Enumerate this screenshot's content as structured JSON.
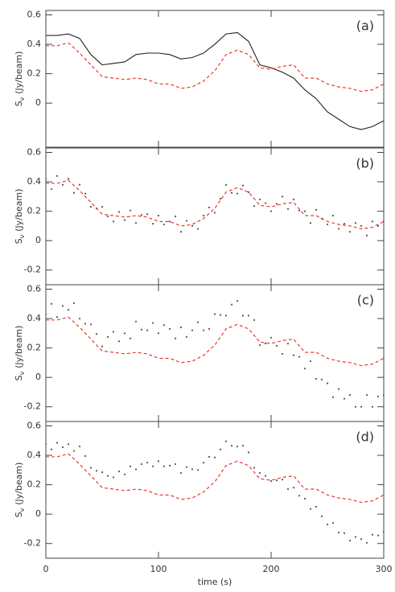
{
  "chart_data": [
    {
      "type": "line",
      "label": "(a)",
      "ylabel": {
        "main": "S",
        "sub": "ν",
        "unit": "(Jy/beam)"
      },
      "xlim": [
        0,
        300
      ],
      "xticks": [
        0,
        100,
        200,
        300
      ],
      "xtick_labels": false,
      "ylim": [
        -0.3,
        0.63
      ],
      "yticks": [
        0,
        0.2,
        0.4,
        0.6
      ],
      "series": [
        {
          "style": "solid",
          "color": "#222222",
          "x": [
            0,
            10,
            20,
            30,
            40,
            50,
            60,
            70,
            80,
            90,
            100,
            110,
            120,
            130,
            140,
            150,
            160,
            170,
            180,
            190,
            200,
            210,
            220,
            230,
            240,
            250,
            260,
            270,
            280,
            290,
            300
          ],
          "values": [
            0.46,
            0.46,
            0.47,
            0.44,
            0.33,
            0.26,
            0.27,
            0.28,
            0.33,
            0.34,
            0.34,
            0.33,
            0.3,
            0.31,
            0.34,
            0.4,
            0.47,
            0.48,
            0.42,
            0.26,
            0.24,
            0.21,
            0.17,
            0.09,
            0.03,
            -0.06,
            -0.11,
            -0.16,
            -0.18,
            -0.16,
            -0.12
          ]
        },
        {
          "style": "dashed",
          "color": "#e8281e",
          "x": [
            0,
            10,
            20,
            30,
            40,
            50,
            60,
            70,
            80,
            90,
            100,
            110,
            120,
            130,
            140,
            150,
            160,
            170,
            180,
            190,
            200,
            210,
            220,
            230,
            240,
            250,
            260,
            270,
            280,
            290,
            300
          ],
          "values": [
            0.39,
            0.39,
            0.41,
            0.34,
            0.26,
            0.18,
            0.17,
            0.16,
            0.17,
            0.16,
            0.13,
            0.13,
            0.1,
            0.11,
            0.15,
            0.22,
            0.33,
            0.36,
            0.33,
            0.24,
            0.23,
            0.25,
            0.26,
            0.17,
            0.17,
            0.13,
            0.11,
            0.1,
            0.08,
            0.09,
            0.13
          ]
        }
      ]
    },
    {
      "type": "line",
      "label": "(b)",
      "ylabel": {
        "main": "S",
        "sub": "ν",
        "unit": "(Jy/beam)"
      },
      "xlim": [
        0,
        300
      ],
      "xticks": [
        0,
        100,
        200,
        300
      ],
      "xtick_labels": false,
      "ylim": [
        -0.3,
        0.63
      ],
      "yticks": [
        -0.2,
        0,
        0.2,
        0.4,
        0.6
      ],
      "series": [
        {
          "style": "dots",
          "color": "#555555",
          "x": [
            0,
            5,
            10,
            15,
            20,
            25,
            30,
            35,
            40,
            45,
            50,
            55,
            60,
            65,
            70,
            75,
            80,
            85,
            90,
            95,
            100,
            105,
            110,
            115,
            120,
            125,
            130,
            135,
            140,
            145,
            150,
            155,
            160,
            165,
            170,
            175,
            180,
            185,
            190,
            195,
            200,
            205,
            210,
            215,
            220,
            225,
            230,
            235,
            240,
            245,
            250,
            255,
            260,
            265,
            270,
            275,
            280,
            285,
            290,
            295,
            300
          ],
          "values": [
            0.42,
            0.35,
            0.44,
            0.38,
            0.42,
            0.325,
            0.38,
            0.32,
            0.23,
            0.22,
            0.23,
            0.165,
            0.13,
            0.195,
            0.14,
            0.205,
            0.12,
            0.175,
            0.18,
            0.115,
            0.17,
            0.11,
            0.13,
            0.165,
            0.06,
            0.135,
            0.1,
            0.08,
            0.17,
            0.225,
            0.19,
            0.285,
            0.38,
            0.325,
            0.32,
            0.375,
            0.33,
            0.235,
            0.28,
            0.255,
            0.2,
            0.25,
            0.3,
            0.215,
            0.28,
            0.205,
            0.2,
            0.12,
            0.21,
            0.15,
            0.11,
            0.17,
            0.08,
            0.115,
            0.06,
            0.12,
            0.1,
            0.035,
            0.13,
            0.1,
            0.13
          ]
        },
        {
          "style": "dashed",
          "color": "#e8281e",
          "x": [
            0,
            10,
            20,
            30,
            40,
            50,
            60,
            70,
            80,
            90,
            100,
            110,
            120,
            130,
            140,
            150,
            160,
            170,
            180,
            190,
            200,
            210,
            220,
            230,
            240,
            250,
            260,
            270,
            280,
            290,
            300
          ],
          "values": [
            0.39,
            0.39,
            0.41,
            0.34,
            0.26,
            0.18,
            0.17,
            0.16,
            0.17,
            0.16,
            0.13,
            0.13,
            0.1,
            0.11,
            0.15,
            0.22,
            0.33,
            0.36,
            0.33,
            0.24,
            0.23,
            0.25,
            0.26,
            0.17,
            0.17,
            0.13,
            0.11,
            0.1,
            0.08,
            0.09,
            0.13
          ]
        }
      ]
    },
    {
      "type": "line",
      "label": "(c)",
      "ylabel": {
        "main": "S",
        "sub": "ν",
        "unit": "(Jy/beam)"
      },
      "xlim": [
        0,
        300
      ],
      "xticks": [
        0,
        100,
        200,
        300
      ],
      "xtick_labels": false,
      "ylim": [
        -0.3,
        0.63
      ],
      "yticks": [
        -0.2,
        0,
        0.2,
        0.4,
        0.6
      ],
      "series": [
        {
          "style": "dots",
          "color": "#555555",
          "x": [
            0,
            5,
            10,
            15,
            20,
            25,
            30,
            35,
            40,
            45,
            50,
            55,
            60,
            65,
            70,
            75,
            80,
            85,
            90,
            95,
            100,
            105,
            110,
            115,
            120,
            125,
            130,
            135,
            140,
            145,
            150,
            155,
            160,
            165,
            170,
            175,
            180,
            185,
            190,
            195,
            200,
            205,
            210,
            215,
            220,
            225,
            230,
            235,
            240,
            245,
            250,
            255,
            260,
            265,
            270,
            275,
            280,
            285,
            290,
            295,
            300
          ],
          "values": [
            0.43,
            0.5,
            0.41,
            0.485,
            0.46,
            0.505,
            0.4,
            0.365,
            0.36,
            0.295,
            0.21,
            0.275,
            0.31,
            0.245,
            0.3,
            0.265,
            0.38,
            0.325,
            0.32,
            0.37,
            0.3,
            0.355,
            0.33,
            0.265,
            0.34,
            0.275,
            0.32,
            0.375,
            0.32,
            0.33,
            0.43,
            0.425,
            0.42,
            0.495,
            0.52,
            0.42,
            0.42,
            0.39,
            0.22,
            0.23,
            0.27,
            0.215,
            0.16,
            0.23,
            0.15,
            0.14,
            0.06,
            0.11,
            -0.01,
            -0.015,
            -0.04,
            -0.135,
            -0.08,
            -0.145,
            -0.12,
            -0.2,
            -0.2,
            -0.12,
            -0.2,
            -0.13,
            -0.12
          ]
        },
        {
          "style": "dashed",
          "color": "#e8281e",
          "x": [
            0,
            10,
            20,
            30,
            40,
            50,
            60,
            70,
            80,
            90,
            100,
            110,
            120,
            130,
            140,
            150,
            160,
            170,
            180,
            190,
            200,
            210,
            220,
            230,
            240,
            250,
            260,
            270,
            280,
            290,
            300
          ],
          "values": [
            0.39,
            0.39,
            0.41,
            0.34,
            0.26,
            0.18,
            0.17,
            0.16,
            0.17,
            0.16,
            0.13,
            0.13,
            0.1,
            0.11,
            0.15,
            0.22,
            0.33,
            0.36,
            0.33,
            0.24,
            0.23,
            0.25,
            0.26,
            0.17,
            0.17,
            0.13,
            0.11,
            0.1,
            0.08,
            0.09,
            0.13
          ]
        }
      ]
    },
    {
      "type": "line",
      "label": "(d)",
      "ylabel": {
        "main": "S",
        "sub": "ν",
        "unit": "(Jy/beam)"
      },
      "xlabel": "time (s)",
      "xlim": [
        0,
        300
      ],
      "xticks": [
        0,
        100,
        200,
        300
      ],
      "xtick_labels": true,
      "ylim": [
        -0.3,
        0.63
      ],
      "yticks": [
        -0.2,
        0,
        0.2,
        0.4,
        0.6
      ],
      "series": [
        {
          "style": "dots",
          "color": "#555555",
          "x": [
            0,
            5,
            10,
            15,
            20,
            25,
            30,
            35,
            40,
            45,
            50,
            55,
            60,
            65,
            70,
            75,
            80,
            85,
            90,
            95,
            100,
            105,
            110,
            115,
            120,
            125,
            130,
            135,
            140,
            145,
            150,
            155,
            160,
            165,
            170,
            175,
            180,
            185,
            190,
            195,
            200,
            205,
            210,
            215,
            220,
            225,
            230,
            235,
            240,
            245,
            250,
            255,
            260,
            265,
            270,
            275,
            280,
            285,
            290,
            295,
            300
          ],
          "values": [
            0.475,
            0.44,
            0.485,
            0.455,
            0.475,
            0.43,
            0.46,
            0.395,
            0.315,
            0.295,
            0.285,
            0.26,
            0.25,
            0.29,
            0.27,
            0.325,
            0.305,
            0.34,
            0.35,
            0.325,
            0.36,
            0.325,
            0.33,
            0.34,
            0.28,
            0.32,
            0.305,
            0.3,
            0.35,
            0.39,
            0.385,
            0.44,
            0.495,
            0.465,
            0.46,
            0.465,
            0.42,
            0.315,
            0.28,
            0.26,
            0.225,
            0.23,
            0.235,
            0.17,
            0.18,
            0.125,
            0.105,
            0.035,
            0.05,
            -0.015,
            -0.07,
            -0.06,
            -0.125,
            -0.13,
            -0.18,
            -0.155,
            -0.17,
            -0.195,
            -0.14,
            -0.145,
            -0.12
          ]
        },
        {
          "style": "dashed",
          "color": "#e8281e",
          "x": [
            0,
            10,
            20,
            30,
            40,
            50,
            60,
            70,
            80,
            90,
            100,
            110,
            120,
            130,
            140,
            150,
            160,
            170,
            180,
            190,
            200,
            210,
            220,
            230,
            240,
            250,
            260,
            270,
            280,
            290,
            300
          ],
          "values": [
            0.39,
            0.39,
            0.41,
            0.34,
            0.26,
            0.18,
            0.17,
            0.16,
            0.17,
            0.16,
            0.13,
            0.13,
            0.1,
            0.11,
            0.15,
            0.22,
            0.33,
            0.36,
            0.33,
            0.24,
            0.23,
            0.25,
            0.26,
            0.17,
            0.17,
            0.13,
            0.11,
            0.1,
            0.08,
            0.09,
            0.13
          ]
        }
      ]
    }
  ]
}
